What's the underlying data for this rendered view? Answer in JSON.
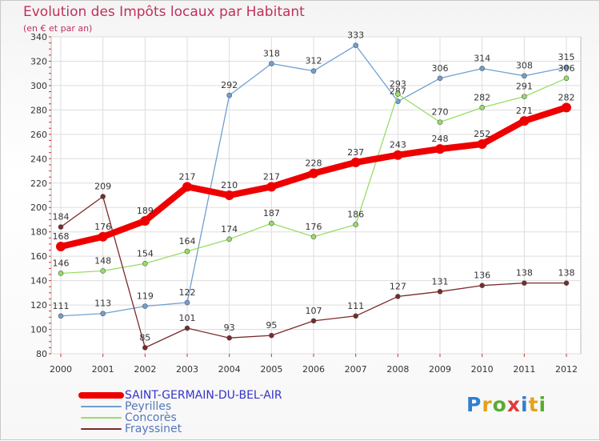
{
  "title": "Evolution des Impôts locaux par Habitant",
  "subtitle": "(en € et par an)",
  "logo": {
    "text": "Proxiti",
    "letter_colors": [
      "#2f7fd0",
      "#e5a11b",
      "#5aac2f",
      "#e23a3a",
      "#2f7fd0",
      "#e5a11b",
      "#5aac2f"
    ]
  },
  "chart_data": {
    "type": "line",
    "x": [
      "2000",
      "2001",
      "2002",
      "2003",
      "2004",
      "2005",
      "2006",
      "2007",
      "2008",
      "2009",
      "2010",
      "2011",
      "2012"
    ],
    "ylim": [
      80,
      340
    ],
    "yticks": [
      80,
      100,
      120,
      140,
      160,
      180,
      200,
      220,
      240,
      260,
      280,
      300,
      320,
      340
    ],
    "grid": true,
    "legend_position": "bottom-left",
    "series": [
      {
        "name": "SAINT-GERMAIN-DU-BEL-AIR",
        "color": "#ee0000",
        "values": [
          168,
          176,
          189,
          217,
          210,
          217,
          228,
          237,
          243,
          248,
          252,
          271,
          282
        ]
      },
      {
        "name": "Peyrilles",
        "color": "#6fa0d0",
        "values": [
          111,
          113,
          119,
          122,
          292,
          318,
          312,
          333,
          287,
          306,
          314,
          308,
          315
        ]
      },
      {
        "name": "Concorès",
        "color": "#99dd66",
        "values": [
          146,
          148,
          154,
          164,
          174,
          187,
          176,
          186,
          293,
          270,
          282,
          291,
          306
        ]
      },
      {
        "name": "Frayssinet",
        "color": "#7a2a2a",
        "values": [
          184,
          209,
          85,
          101,
          93,
          95,
          107,
          111,
          127,
          131,
          136,
          138,
          138
        ]
      }
    ]
  }
}
